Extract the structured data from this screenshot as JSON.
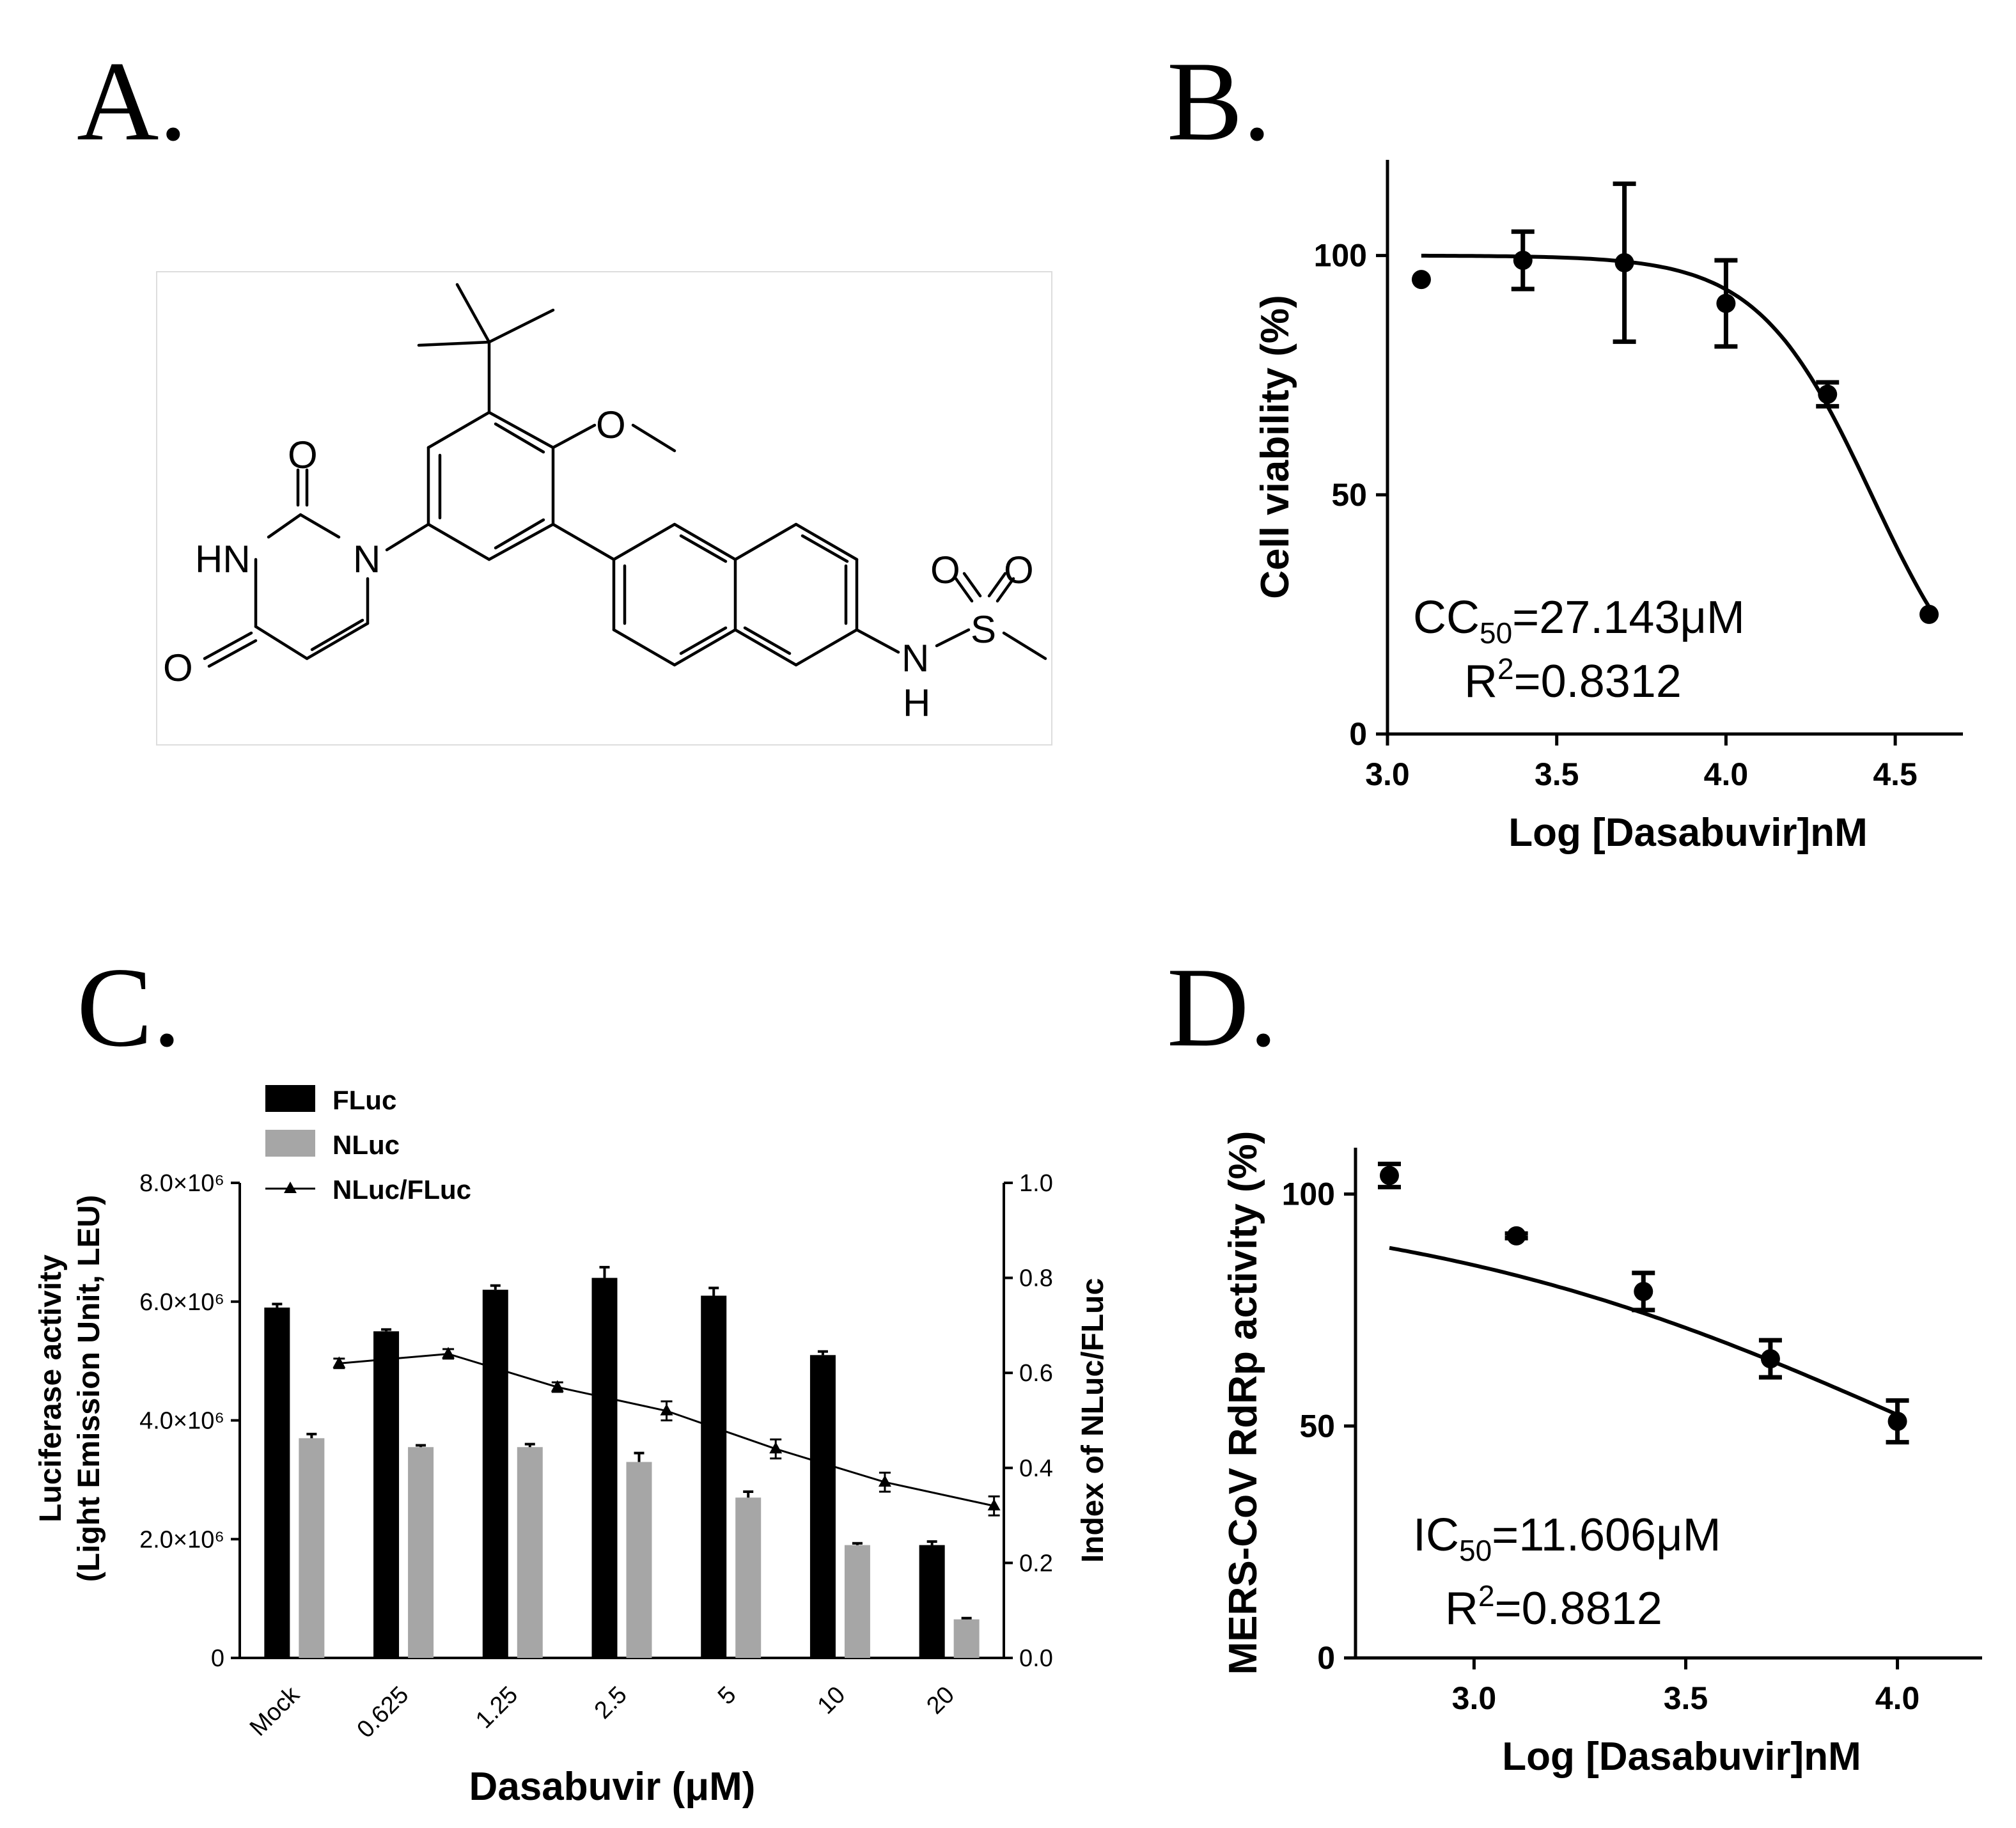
{
  "panels": {
    "A": {
      "letter": "A.",
      "atoms": {
        "O1": "O",
        "O2": "O",
        "O3": "O",
        "HN": "HN",
        "N": "N",
        "NH_N": "N",
        "NH_H": "H",
        "S": "S",
        "SO1": "O",
        "SO2": "O"
      }
    },
    "B": {
      "letter": "B.",
      "annotation_1": "CC",
      "annotation_1_sub": "50",
      "annotation_1_rest": "=27.143μM",
      "annotation_2": "R",
      "annotation_2_sup": "2",
      "annotation_2_rest": "=0.8312"
    },
    "C": {
      "letter": "C."
    },
    "D": {
      "letter": "D.",
      "annotation_1": "IC",
      "annotation_1_sub": "50",
      "annotation_1_rest": "=11.606μM",
      "annotation_2": "R",
      "annotation_2_sup": "2",
      "annotation_2_rest": "=0.8812"
    }
  },
  "chart_data": [
    {
      "id": "B",
      "type": "scatter",
      "xlabel": "Log [Dasabuvir]nM",
      "ylabel": "Cell viability (%)",
      "xlim": [
        3.0,
        4.7
      ],
      "ylim": [
        0,
        120
      ],
      "xticks": [
        "3.0",
        "3.5",
        "4.0",
        "4.5"
      ],
      "yticks": [
        "0",
        "50",
        "100"
      ],
      "points": [
        {
          "x": 3.1,
          "y": 95,
          "err": 0
        },
        {
          "x": 3.4,
          "y": 99,
          "err": 6
        },
        {
          "x": 3.7,
          "y": 98.5,
          "err": 16.5
        },
        {
          "x": 4.0,
          "y": 90,
          "err": 9
        },
        {
          "x": 4.3,
          "y": 71,
          "err": 2.5
        },
        {
          "x": 4.6,
          "y": 25,
          "err": 0
        }
      ],
      "fit": {
        "top": 100,
        "bottom": 0,
        "logEC50": 4.43,
        "hill": 2.6,
        "x_range": [
          3.1,
          4.6
        ]
      }
    },
    {
      "id": "C",
      "type": "bar",
      "xlabel": "Dasabuvir (μM)",
      "ylabel_line1": "Luciferase activity",
      "ylabel_line2": "(Light Emission Unit, LEU)",
      "y2label": "Index of NLuc/FLuc",
      "categories": [
        "Mock",
        "0.625",
        "1.25",
        "2.5",
        "5",
        "10",
        "20"
      ],
      "ylim": [
        0,
        8000000
      ],
      "yticks": [
        "0",
        "2.0×10⁶",
        "4.0×10⁶",
        "6.0×10⁶",
        "8.0×10⁶"
      ],
      "y2lim": [
        0,
        1.0
      ],
      "y2ticks": [
        "0.0",
        "0.2",
        "0.4",
        "0.6",
        "0.8",
        "1.0"
      ],
      "series": [
        {
          "name": "FLuc",
          "color": "#000000",
          "values": [
            5900000,
            5500000,
            6200000,
            6400000,
            6100000,
            5100000,
            1900000
          ],
          "errors": [
            60000,
            30000,
            70000,
            180000,
            130000,
            60000,
            60000
          ]
        },
        {
          "name": "NLuc",
          "color": "#a6a6a6",
          "values": [
            3700000,
            3550000,
            3550000,
            3300000,
            2700000,
            1900000,
            650000
          ],
          "errors": [
            70000,
            30000,
            50000,
            150000,
            100000,
            30000,
            20000
          ]
        },
        {
          "name": "NLuc/FLuc",
          "color": "#000000",
          "axis": "right",
          "values": [
            0.62,
            0.64,
            0.57,
            0.52,
            0.44,
            0.37,
            0.32
          ],
          "errors": [
            0.01,
            0.01,
            0.01,
            0.02,
            0.02,
            0.02,
            0.02
          ]
        }
      ]
    },
    {
      "id": "D",
      "type": "scatter",
      "xlabel": "Log [Dasabuvir]nM",
      "ylabel": "MERS-CoV RdRp activity (%)",
      "xlim": [
        2.72,
        4.2
      ],
      "ylim": [
        0,
        110
      ],
      "xticks": [
        "3.0",
        "3.5",
        "4.0"
      ],
      "yticks": [
        "0",
        "50",
        "100"
      ],
      "points": [
        {
          "x": 2.8,
          "y": 104,
          "err": 2.5
        },
        {
          "x": 3.1,
          "y": 91,
          "err": 0.5
        },
        {
          "x": 3.4,
          "y": 79,
          "err": 4
        },
        {
          "x": 3.7,
          "y": 64.5,
          "err": 4
        },
        {
          "x": 4.0,
          "y": 51,
          "err": 4.5
        }
      ],
      "fit": {
        "top": 100,
        "bottom": 0,
        "logEC50": 4.06,
        "hill": 0.7,
        "x_range": [
          2.8,
          4.0
        ]
      }
    }
  ]
}
